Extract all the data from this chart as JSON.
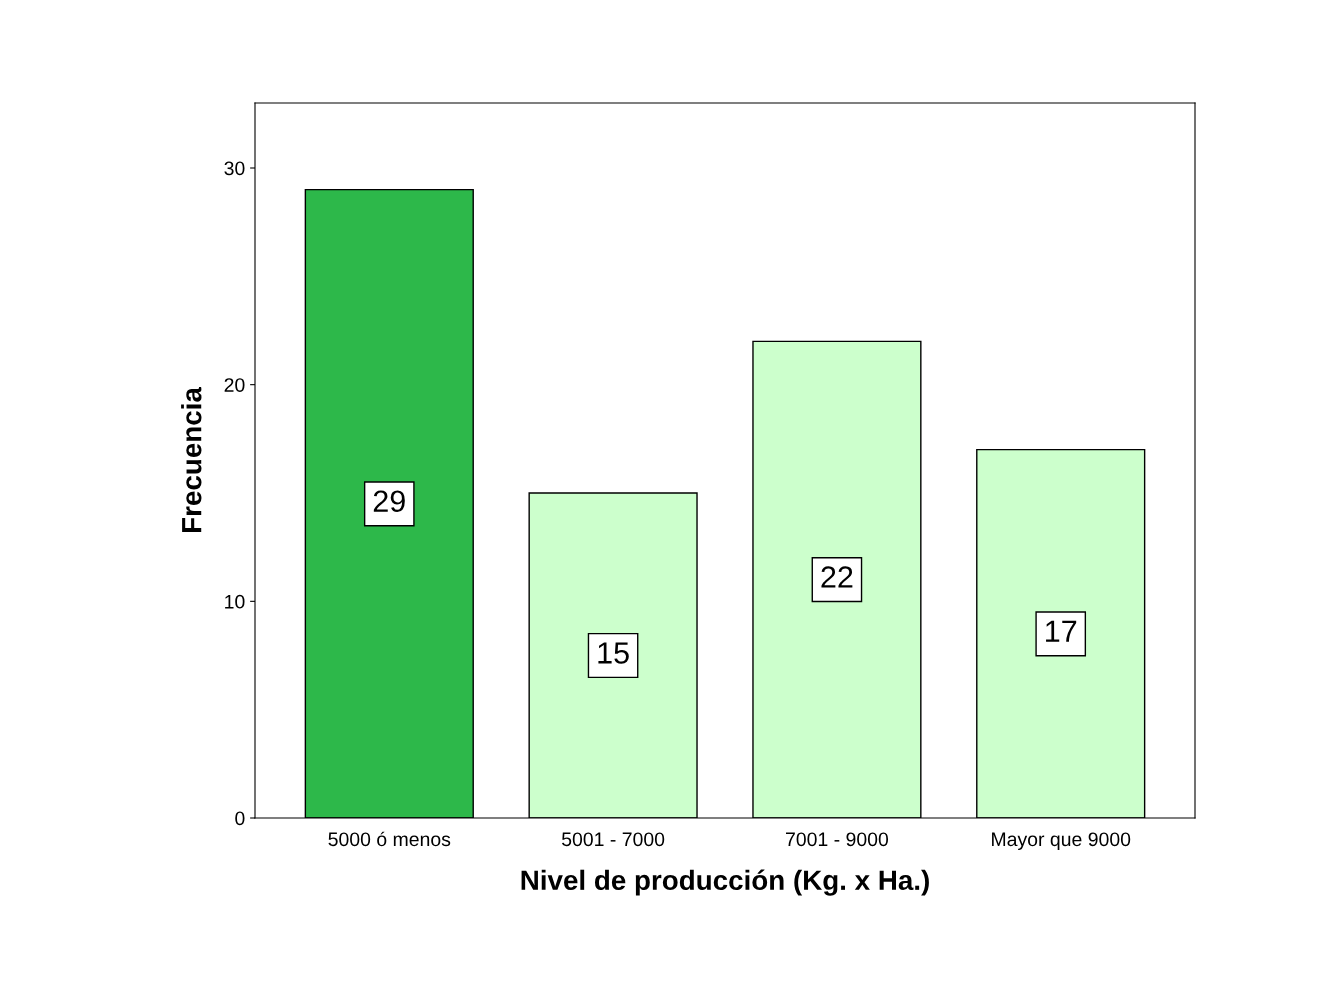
{
  "chart_data": {
    "type": "bar",
    "xlabel": "Nivel de producción (Kg. x Ha.)",
    "ylabel": "Frecuencia",
    "categories": [
      "5000 ó menos",
      "5001 - 7000",
      "7001 - 9000",
      "Mayor que 9000"
    ],
    "values": [
      29,
      15,
      22,
      17
    ],
    "colors": [
      "#2db84a",
      "#ccffcc",
      "#ccffcc",
      "#ccffcc"
    ],
    "ylim": [
      0,
      33
    ],
    "yticks": [
      0,
      10,
      20,
      30
    ],
    "data_labels": true,
    "grid": false,
    "legend": false
  }
}
